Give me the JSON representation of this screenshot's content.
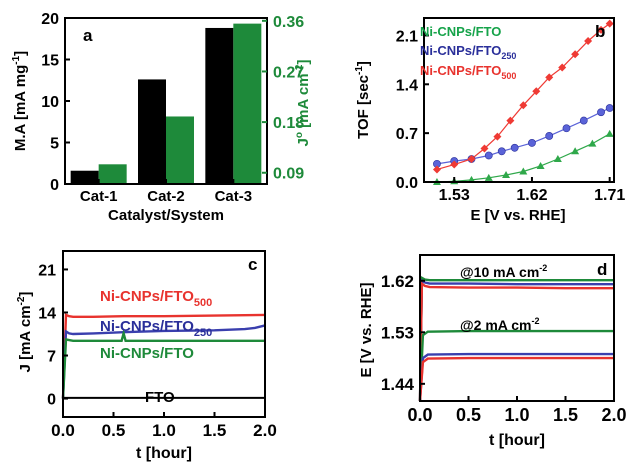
{
  "colors": {
    "black": "#000000",
    "green": "#1e8a3a",
    "blue": "#3a3fae",
    "red": "#e8332e",
    "legend_green": "#16a34a",
    "legend_blue": "#2a2f9a",
    "legend_red": "#e8332e",
    "blue_marker": "#5a63d8",
    "red_marker": "#ef3a34",
    "green_marker": "#2fa84a"
  },
  "chart_data": [
    {
      "panel": "a",
      "type": "bar",
      "categories": [
        "Cat-1",
        "Cat-2",
        "Cat-3"
      ],
      "series": [
        {
          "values": [
            1.6,
            12.6,
            18.8
          ],
          "axis": "left",
          "color": "black"
        },
        {
          "values": [
            0.105,
            0.19,
            0.355
          ],
          "axis": "right",
          "color": "green"
        }
      ],
      "xlabel": "Catalyst/System",
      "ylabel": "M.A [mA mg",
      "ylabel_sup": "-1",
      "ylabel_end": "]",
      "ylabel2": "J",
      "ylabel2_sup": "o",
      "ylabel2_rest": " [mA cm",
      "ylabel2_sup2": "-2",
      "ylabel2_end": "]",
      "ylim": [
        0,
        20
      ],
      "y2lim": [
        0.07,
        0.365
      ],
      "yticks": [
        0,
        5,
        10,
        15,
        20
      ],
      "y2ticks": [
        0.09,
        0.18,
        0.27,
        0.36
      ],
      "y2tick_labels": [
        "0.09",
        "0.18",
        "0.27",
        "0.36"
      ]
    },
    {
      "panel": "b",
      "type": "line",
      "series": [
        {
          "name": "Ni-CNPs/FTO",
          "marker": "triangle",
          "color": "green",
          "x": [
            1.51,
            1.53,
            1.55,
            1.57,
            1.59,
            1.61,
            1.63,
            1.65,
            1.67,
            1.69,
            1.71
          ],
          "y": [
            0.0,
            0.01,
            0.03,
            0.06,
            0.1,
            0.15,
            0.23,
            0.33,
            0.44,
            0.55,
            0.69
          ]
        },
        {
          "name": "Ni-CNPs/FTO",
          "name_sub": "250",
          "marker": "circle",
          "color": "blue",
          "x": [
            1.51,
            1.53,
            1.55,
            1.57,
            1.585,
            1.6,
            1.62,
            1.64,
            1.66,
            1.68,
            1.7,
            1.71
          ],
          "y": [
            0.26,
            0.3,
            0.33,
            0.38,
            0.44,
            0.49,
            0.56,
            0.66,
            0.77,
            0.88,
            1.0,
            1.06
          ]
        },
        {
          "name": "Ni-CNPs/FTO",
          "name_sub": "500",
          "marker": "diamond",
          "color": "red",
          "x": [
            1.51,
            1.53,
            1.55,
            1.565,
            1.58,
            1.595,
            1.61,
            1.625,
            1.64,
            1.655,
            1.67,
            1.685,
            1.7,
            1.71
          ],
          "y": [
            0.18,
            0.25,
            0.33,
            0.48,
            0.65,
            0.88,
            1.1,
            1.3,
            1.5,
            1.64,
            1.83,
            2.02,
            2.18,
            2.27
          ]
        }
      ],
      "xlabel": "E [V vs. RHE]",
      "ylabel": "TOF [sec",
      "ylabel_sup": "-1",
      "ylabel_end": "]",
      "xlim": [
        1.495,
        1.715
      ],
      "ylim": [
        0,
        2.35
      ],
      "xticks": [
        1.53,
        1.62,
        1.71
      ],
      "xtick_labels": [
        "1.53",
        "1.62",
        "1.71"
      ],
      "yticks": [
        0.0,
        0.7,
        1.4,
        2.1
      ],
      "ytick_labels": [
        "0.0",
        "0.7",
        "1.4",
        "2.1"
      ]
    },
    {
      "panel": "c",
      "type": "line",
      "series": [
        {
          "name": "Ni-CNPs/FTO",
          "name_sub": "500",
          "color": "red",
          "x": [
            0.0,
            0.03,
            0.06,
            0.1,
            0.3,
            0.6,
            1.0,
            1.5,
            2.0
          ],
          "y": [
            0.0,
            13.6,
            13.4,
            13.3,
            13.3,
            13.4,
            13.4,
            13.5,
            13.6
          ]
        },
        {
          "name": "Ni-CNPs/FTO",
          "name_sub": "250",
          "color": "blue",
          "x": [
            0.0,
            0.03,
            0.06,
            0.1,
            0.3,
            0.6,
            1.0,
            1.5,
            1.8,
            1.9,
            2.0
          ],
          "y": [
            0.0,
            10.9,
            10.6,
            10.5,
            10.6,
            10.8,
            11.0,
            11.1,
            11.3,
            11.5,
            11.9
          ]
        },
        {
          "name": "Ni-CNPs/FTO",
          "color": "green",
          "x": [
            0.0,
            0.03,
            0.06,
            0.1,
            0.3,
            0.5,
            0.58,
            0.6,
            0.62,
            0.7,
            1.0,
            1.5,
            2.0
          ],
          "y": [
            0.0,
            9.6,
            9.5,
            9.4,
            9.4,
            9.4,
            9.4,
            10.6,
            9.4,
            9.4,
            9.4,
            9.4,
            9.4
          ]
        },
        {
          "name": "FTO",
          "color": "black",
          "x": [
            0.0,
            2.0
          ],
          "y": [
            0.1,
            0.1
          ]
        }
      ],
      "xlabel": "t [hour]",
      "ylabel": "J [mA cm",
      "ylabel_sup": "-2",
      "ylabel_end": "]",
      "xlim": [
        0,
        2.0
      ],
      "ylim": [
        -3,
        24
      ],
      "xticks": [
        0.0,
        0.5,
        1.0,
        1.5,
        2.0
      ],
      "xtick_labels": [
        "0.0",
        "0.5",
        "1.0",
        "1.5",
        "2.0"
      ],
      "yticks": [
        0,
        7,
        14,
        21
      ],
      "ytick_labels": [
        "0",
        "7",
        "14",
        "21"
      ],
      "annotations": [
        "Ni-CNPs/FTO",
        "Ni-CNPs/FTO",
        "Ni-CNPs/FTO",
        "FTO"
      ]
    },
    {
      "panel": "d",
      "type": "line",
      "series": [
        {
          "color": "green",
          "x": [
            0.0,
            0.02,
            0.05,
            0.1,
            0.5,
            1.0,
            1.5,
            2.0
          ],
          "y": [
            1.41,
            1.625,
            1.622,
            1.621,
            1.621,
            1.621,
            1.621,
            1.621
          ]
        },
        {
          "color": "blue",
          "x": [
            0.0,
            0.02,
            0.05,
            0.1,
            0.5,
            1.0,
            1.5,
            2.0
          ],
          "y": [
            1.41,
            1.62,
            1.617,
            1.615,
            1.615,
            1.614,
            1.614,
            1.614
          ]
        },
        {
          "color": "red",
          "x": [
            0.0,
            0.02,
            0.05,
            0.1,
            0.5,
            1.0,
            1.5,
            2.0
          ],
          "y": [
            1.41,
            1.615,
            1.611,
            1.609,
            1.608,
            1.608,
            1.607,
            1.607
          ]
        },
        {
          "color": "green",
          "x": [
            0.0,
            0.03,
            0.08,
            0.5,
            1.0,
            1.5,
            2.0
          ],
          "y": [
            1.41,
            1.525,
            1.531,
            1.532,
            1.532,
            1.532,
            1.532
          ]
        },
        {
          "color": "blue",
          "x": [
            0.0,
            0.03,
            0.08,
            0.5,
            1.0,
            1.5,
            2.0
          ],
          "y": [
            1.41,
            1.485,
            1.491,
            1.492,
            1.492,
            1.492,
            1.492
          ]
        },
        {
          "color": "red",
          "x": [
            0.0,
            0.03,
            0.08,
            0.5,
            1.0,
            1.5,
            2.0
          ],
          "y": [
            1.41,
            1.478,
            1.484,
            1.485,
            1.485,
            1.485,
            1.485
          ]
        }
      ],
      "xlabel": "t [hour]",
      "ylabel": "E [V vs. RHE]",
      "xlim": [
        0,
        2.0
      ],
      "ylim": [
        1.41,
        1.665
      ],
      "xticks": [
        0.0,
        0.5,
        1.0,
        1.5,
        2.0
      ],
      "xtick_labels": [
        "0.0",
        "0.5",
        "1.0",
        "1.5",
        "2.0"
      ],
      "yticks": [
        1.44,
        1.53,
        1.62
      ],
      "ytick_labels": [
        "1.44",
        "1.53",
        "1.62"
      ],
      "annotations": [
        "@10 mA cm",
        "@2 mA cm"
      ],
      "annotation_sup": "-2"
    }
  ]
}
